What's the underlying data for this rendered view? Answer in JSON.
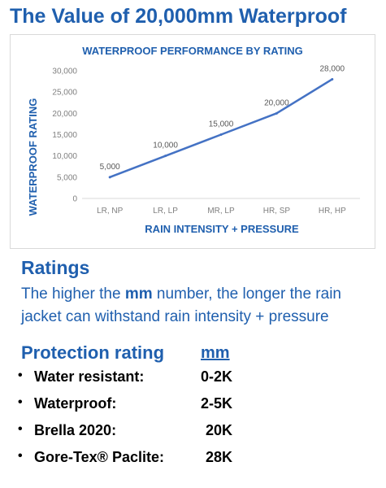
{
  "header": {
    "title": "The Value of 20,000mm Waterproof"
  },
  "chart_data": {
    "type": "line",
    "title": "WATERPROOF PERFORMANCE BY RATING",
    "xlabel": "RAIN INTENSITY + PRESSURE",
    "ylabel": "WATERPROOF RATING",
    "categories": [
      "LR, NP",
      "LR, LP",
      "MR, LP",
      "HR, SP",
      "HR, HP"
    ],
    "values": [
      5000,
      10000,
      15000,
      20000,
      28000
    ],
    "data_labels": [
      "5,000",
      "10,000",
      "15,000",
      "20,000",
      "28,000"
    ],
    "ylim": [
      0,
      30000
    ],
    "yticks": [
      0,
      5000,
      10000,
      15000,
      20000,
      25000,
      30000
    ],
    "ytick_labels": [
      "0",
      "5,000",
      "10,000",
      "15,000",
      "20,000",
      "25,000",
      "30,000"
    ],
    "grid": false,
    "line_color": "#4472c4",
    "title_color": "#1f5fae"
  },
  "ratings": {
    "heading": "Ratings",
    "desc_pre": "The higher the ",
    "desc_bold": "mm",
    "desc_post": " number, the longer the rain jacket can withstand rain intensity + pressure"
  },
  "protection": {
    "heading": "Protection rating",
    "unit_header": "mm",
    "bullet": "•",
    "items": [
      {
        "name": "Water resistant:",
        "value": "0-2K"
      },
      {
        "name": "Waterproof:",
        "value": "2-5K"
      },
      {
        "name": "Brella 2020:",
        "value": "20K"
      },
      {
        "name": "Gore-Tex® Paclite:",
        "value": "28K"
      }
    ]
  }
}
